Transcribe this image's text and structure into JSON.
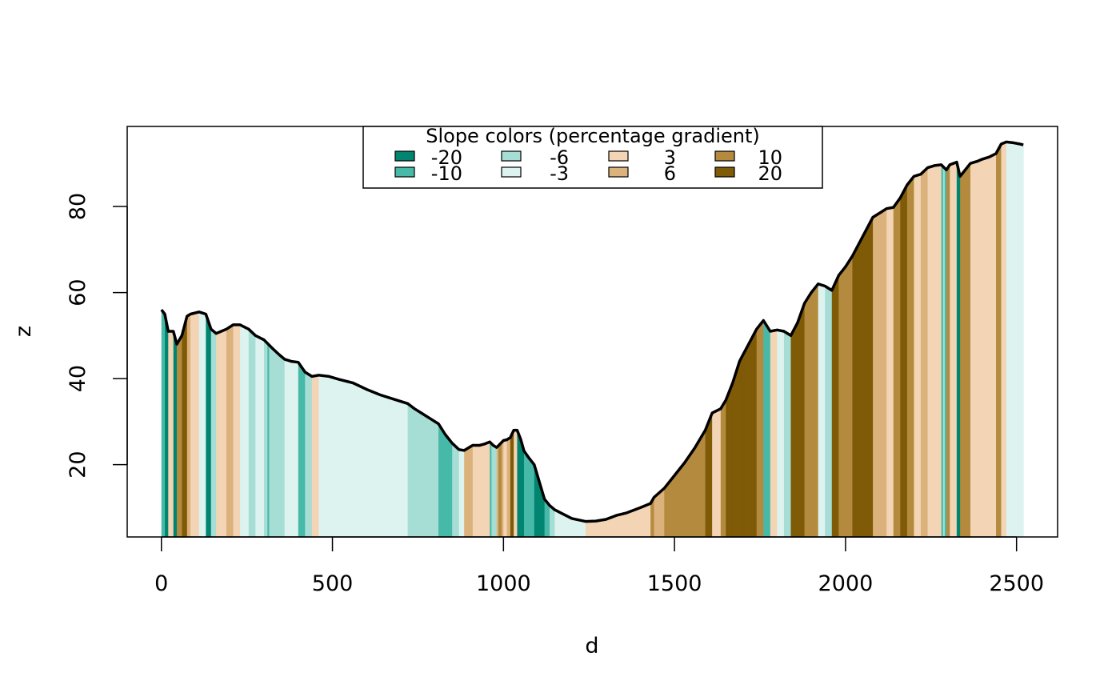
{
  "chart_data": {
    "type": "area",
    "title": "",
    "xlabel": "d",
    "ylabel": "z",
    "xlim": [
      -100,
      2620
    ],
    "ylim": [
      3.2,
      98.6
    ],
    "x_ticks": [
      0,
      500,
      1000,
      1500,
      2000,
      2500
    ],
    "y_ticks": [
      20,
      40,
      60,
      80
    ],
    "grid": false,
    "legend": {
      "title": "Slope colors (percentage gradient)",
      "placement": "top-center",
      "entries": [
        {
          "label": "-20",
          "color": "#018571"
        },
        {
          "label": "-10",
          "color": "#47b9a8"
        },
        {
          "label": "-6",
          "color": "#a6ddd5"
        },
        {
          "label": "-3",
          "color": "#ddf3f0"
        },
        {
          "label": "3",
          "color": "#f3d4b5"
        },
        {
          "label": "6",
          "color": "#dcb27c"
        },
        {
          "label": "10",
          "color": "#b48a3e"
        },
        {
          "label": "20",
          "color": "#7f5a07"
        }
      ]
    },
    "series": [
      {
        "x": [
          0,
          10,
          20,
          35,
          45,
          60,
          75,
          85,
          110,
          130,
          145,
          160,
          175,
          190,
          210,
          230,
          255,
          275,
          300,
          325,
          345,
          360,
          380,
          400,
          420,
          440,
          460,
          490,
          520,
          560,
          600,
          640,
          680,
          720,
          740,
          760,
          790,
          810,
          830,
          850,
          870,
          885,
          910,
          930,
          945,
          960,
          970,
          980,
          990,
          1000,
          1010,
          1020,
          1030,
          1040,
          1050,
          1060,
          1075,
          1090,
          1105,
          1120,
          1135,
          1150,
          1170,
          1200,
          1240,
          1270,
          1300,
          1330,
          1360,
          1400,
          1430,
          1440,
          1470,
          1500,
          1530,
          1560,
          1590,
          1610,
          1635,
          1650,
          1670,
          1690,
          1700,
          1720,
          1740,
          1760,
          1780,
          1800,
          1820,
          1840,
          1860,
          1880,
          1900,
          1920,
          1940,
          1960,
          1980,
          2000,
          2020,
          2050,
          2080,
          2100,
          2120,
          2140,
          2160,
          2180,
          2200,
          2220,
          2240,
          2260,
          2280,
          2295,
          2305,
          2325,
          2335,
          2345,
          2365,
          2385,
          2400,
          2420,
          2440,
          2455,
          2470,
          2490,
          2510,
          2520
        ],
        "y": [
          56,
          55,
          51,
          51,
          48,
          50,
          54.5,
          55,
          55.5,
          55,
          51.5,
          50.5,
          51,
          51.5,
          52.5,
          52.5,
          51.5,
          50,
          49,
          47,
          45.5,
          44.5,
          44,
          43.8,
          41.5,
          40.5,
          40.8,
          40.5,
          39.8,
          39,
          37.5,
          36.2,
          35.2,
          34.2,
          33,
          32,
          30.5,
          29.5,
          27,
          25,
          23.5,
          23.3,
          24.5,
          24.5,
          24.8,
          25.3,
          24.5,
          24,
          24.8,
          25.6,
          25.8,
          26.3,
          28,
          28,
          26,
          23.2,
          21.5,
          20,
          16,
          12,
          10.5,
          9.5,
          8.7,
          7.5,
          6.8,
          6.9,
          7.3,
          8.2,
          8.8,
          10,
          11,
          12.4,
          14.5,
          17.5,
          20.5,
          24,
          28,
          32,
          33,
          35,
          39,
          44,
          45.5,
          48.5,
          51.5,
          53.5,
          51,
          51.3,
          51,
          50,
          53,
          57.5,
          60,
          62,
          61.5,
          60.5,
          64,
          66,
          68.5,
          73,
          77.5,
          78.5,
          79.5,
          79.8,
          82,
          85,
          87,
          87.5,
          89,
          89.5,
          89.7,
          88.5,
          89.7,
          90.3,
          87,
          88,
          90,
          90.5,
          91,
          91.5,
          92.3,
          94.5,
          95,
          94.8,
          94.5,
          94.3
        ]
      }
    ]
  }
}
